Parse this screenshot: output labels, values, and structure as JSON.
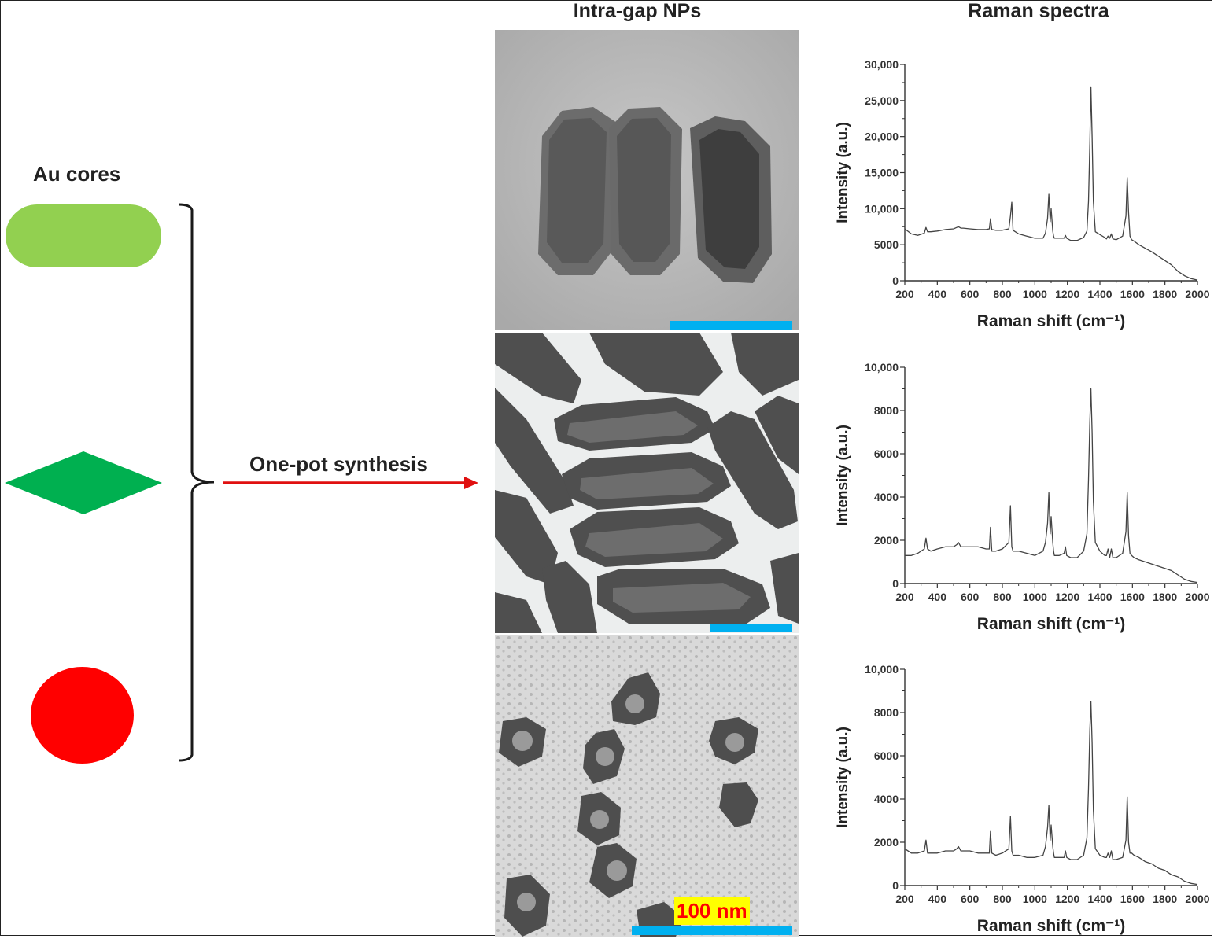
{
  "colors": {
    "rod": "#92d050",
    "diamond": "#00b050",
    "sphere": "#ff0000",
    "arrow": "#e01010",
    "scalebar": "#00b0f0",
    "scale_label_bg": "#ffff00",
    "scale_label_text": "#ff0000"
  },
  "headers": {
    "tem_column": "Intra-gap NPs",
    "raman_column": "Raman spectra"
  },
  "left": {
    "title": "Au cores",
    "shapes": [
      {
        "kind": "rod",
        "icon": "rounded-rod-icon"
      },
      {
        "kind": "diamond",
        "icon": "diamond-icon"
      },
      {
        "kind": "sphere",
        "icon": "circle-icon"
      }
    ]
  },
  "arrow": {
    "label": "One-pot synthesis"
  },
  "tem": {
    "scale_label": "100 nm"
  },
  "chart_data": [
    {
      "type": "line",
      "xlabel": "Raman shift (cm⁻¹)",
      "ylabel": "Intensity (a.u.)",
      "xlim": [
        200,
        2000
      ],
      "ylim": [
        0,
        30000
      ],
      "xticks": [
        200,
        400,
        600,
        800,
        1000,
        1200,
        1400,
        1600,
        1800,
        2000
      ],
      "yticks": [
        0,
        5000,
        10000,
        15000,
        20000,
        25000,
        30000
      ],
      "ytick_labels": [
        "0",
        "5000",
        "10,000",
        "15,000",
        "20,000",
        "25,000",
        "30,000"
      ],
      "x": [
        200,
        240,
        280,
        320,
        330,
        340,
        360,
        400,
        450,
        500,
        520,
        530,
        545,
        560,
        600,
        650,
        700,
        720,
        727,
        735,
        760,
        800,
        840,
        850,
        858,
        866,
        900,
        950,
        1000,
        1050,
        1065,
        1078,
        1086,
        1094,
        1100,
        1110,
        1115,
        1120,
        1150,
        1180,
        1188,
        1196,
        1220,
        1260,
        1300,
        1320,
        1330,
        1338,
        1345,
        1352,
        1360,
        1372,
        1400,
        1430,
        1440,
        1450,
        1460,
        1470,
        1480,
        1500,
        1540,
        1560,
        1568,
        1576,
        1585,
        1595,
        1610,
        1640,
        1680,
        1720,
        1760,
        1800,
        1840,
        1880,
        1920,
        1960,
        2000
      ],
      "y": [
        7200,
        6500,
        6300,
        6600,
        7400,
        6800,
        6800,
        6900,
        7100,
        7200,
        7400,
        7500,
        7300,
        7300,
        7200,
        7100,
        7100,
        7200,
        8600,
        7100,
        7000,
        7000,
        7200,
        9000,
        10900,
        7000,
        6500,
        6200,
        5900,
        5900,
        6600,
        8700,
        12000,
        8200,
        10000,
        6900,
        6200,
        5900,
        5900,
        5900,
        6300,
        5900,
        5600,
        5600,
        6000,
        6900,
        11000,
        19000,
        26900,
        20000,
        11000,
        6800,
        6400,
        6000,
        5800,
        6200,
        5900,
        6500,
        5800,
        5700,
        6200,
        9000,
        14300,
        9500,
        6200,
        5700,
        5500,
        5000,
        4500,
        4000,
        3400,
        2800,
        2200,
        1300,
        700,
        300,
        100
      ]
    },
    {
      "type": "line",
      "xlabel": "Raman shift (cm⁻¹)",
      "ylabel": "Intensity (a.u.)",
      "xlim": [
        200,
        2000
      ],
      "ylim": [
        0,
        10000
      ],
      "xticks": [
        200,
        400,
        600,
        800,
        1000,
        1200,
        1400,
        1600,
        1800,
        2000
      ],
      "yticks": [
        0,
        2000,
        4000,
        6000,
        8000,
        10000
      ],
      "ytick_labels": [
        "0",
        "2000",
        "4000",
        "6000",
        "8000",
        "10,000"
      ],
      "x": [
        200,
        240,
        280,
        320,
        330,
        340,
        360,
        400,
        450,
        500,
        520,
        530,
        545,
        560,
        600,
        650,
        700,
        720,
        727,
        735,
        760,
        800,
        840,
        850,
        858,
        866,
        900,
        950,
        1000,
        1050,
        1065,
        1078,
        1086,
        1094,
        1100,
        1110,
        1115,
        1120,
        1150,
        1180,
        1188,
        1196,
        1220,
        1260,
        1300,
        1320,
        1330,
        1338,
        1345,
        1352,
        1360,
        1372,
        1400,
        1430,
        1440,
        1450,
        1460,
        1470,
        1480,
        1500,
        1540,
        1560,
        1568,
        1576,
        1585,
        1595,
        1610,
        1640,
        1680,
        1720,
        1760,
        1800,
        1840,
        1880,
        1920,
        1960,
        2000
      ],
      "y": [
        1300,
        1300,
        1400,
        1600,
        2100,
        1600,
        1500,
        1600,
        1700,
        1700,
        1800,
        1900,
        1700,
        1700,
        1700,
        1700,
        1600,
        1600,
        2600,
        1500,
        1500,
        1600,
        1900,
        3600,
        1700,
        1500,
        1500,
        1400,
        1300,
        1500,
        1900,
        2800,
        4200,
        2300,
        3100,
        1900,
        1500,
        1300,
        1300,
        1400,
        1700,
        1300,
        1200,
        1200,
        1500,
        2300,
        4800,
        7500,
        9000,
        7000,
        3800,
        1900,
        1500,
        1300,
        1300,
        1600,
        1200,
        1600,
        1200,
        1200,
        1400,
        2400,
        4200,
        2200,
        1400,
        1300,
        1200,
        1100,
        1000,
        900,
        800,
        700,
        600,
        400,
        200,
        100,
        50
      ]
    },
    {
      "type": "line",
      "xlabel": "Raman shift (cm⁻¹)",
      "ylabel": "Intensity (a.u.)",
      "xlim": [
        200,
        2000
      ],
      "ylim": [
        0,
        10000
      ],
      "xticks": [
        200,
        400,
        600,
        800,
        1000,
        1200,
        1400,
        1600,
        1800,
        2000
      ],
      "yticks": [
        0,
        2000,
        4000,
        6000,
        8000,
        10000
      ],
      "ytick_labels": [
        "0",
        "2000",
        "4000",
        "6000",
        "8000",
        "10,000"
      ],
      "x": [
        200,
        240,
        280,
        320,
        330,
        340,
        360,
        400,
        450,
        500,
        520,
        530,
        545,
        560,
        600,
        650,
        700,
        720,
        727,
        735,
        760,
        800,
        840,
        850,
        858,
        866,
        900,
        950,
        1000,
        1050,
        1065,
        1078,
        1086,
        1094,
        1100,
        1110,
        1115,
        1120,
        1150,
        1180,
        1188,
        1196,
        1220,
        1260,
        1300,
        1320,
        1330,
        1338,
        1345,
        1352,
        1360,
        1372,
        1400,
        1430,
        1440,
        1450,
        1460,
        1470,
        1480,
        1500,
        1540,
        1560,
        1568,
        1576,
        1585,
        1595,
        1610,
        1640,
        1680,
        1720,
        1760,
        1800,
        1840,
        1880,
        1920,
        1960,
        2000
      ],
      "y": [
        1700,
        1500,
        1500,
        1600,
        2100,
        1500,
        1500,
        1500,
        1600,
        1600,
        1700,
        1800,
        1600,
        1600,
        1600,
        1500,
        1500,
        1500,
        2500,
        1500,
        1400,
        1500,
        1700,
        3200,
        1600,
        1400,
        1400,
        1300,
        1300,
        1400,
        1800,
        2700,
        3700,
        2100,
        2800,
        1800,
        1500,
        1300,
        1300,
        1300,
        1600,
        1300,
        1200,
        1200,
        1400,
        2200,
        4500,
        7200,
        8500,
        6600,
        3500,
        1700,
        1400,
        1300,
        1300,
        1500,
        1300,
        1600,
        1200,
        1200,
        1300,
        2100,
        4100,
        2000,
        1500,
        1500,
        1400,
        1300,
        1100,
        1000,
        800,
        700,
        500,
        400,
        200,
        100,
        50
      ]
    }
  ]
}
